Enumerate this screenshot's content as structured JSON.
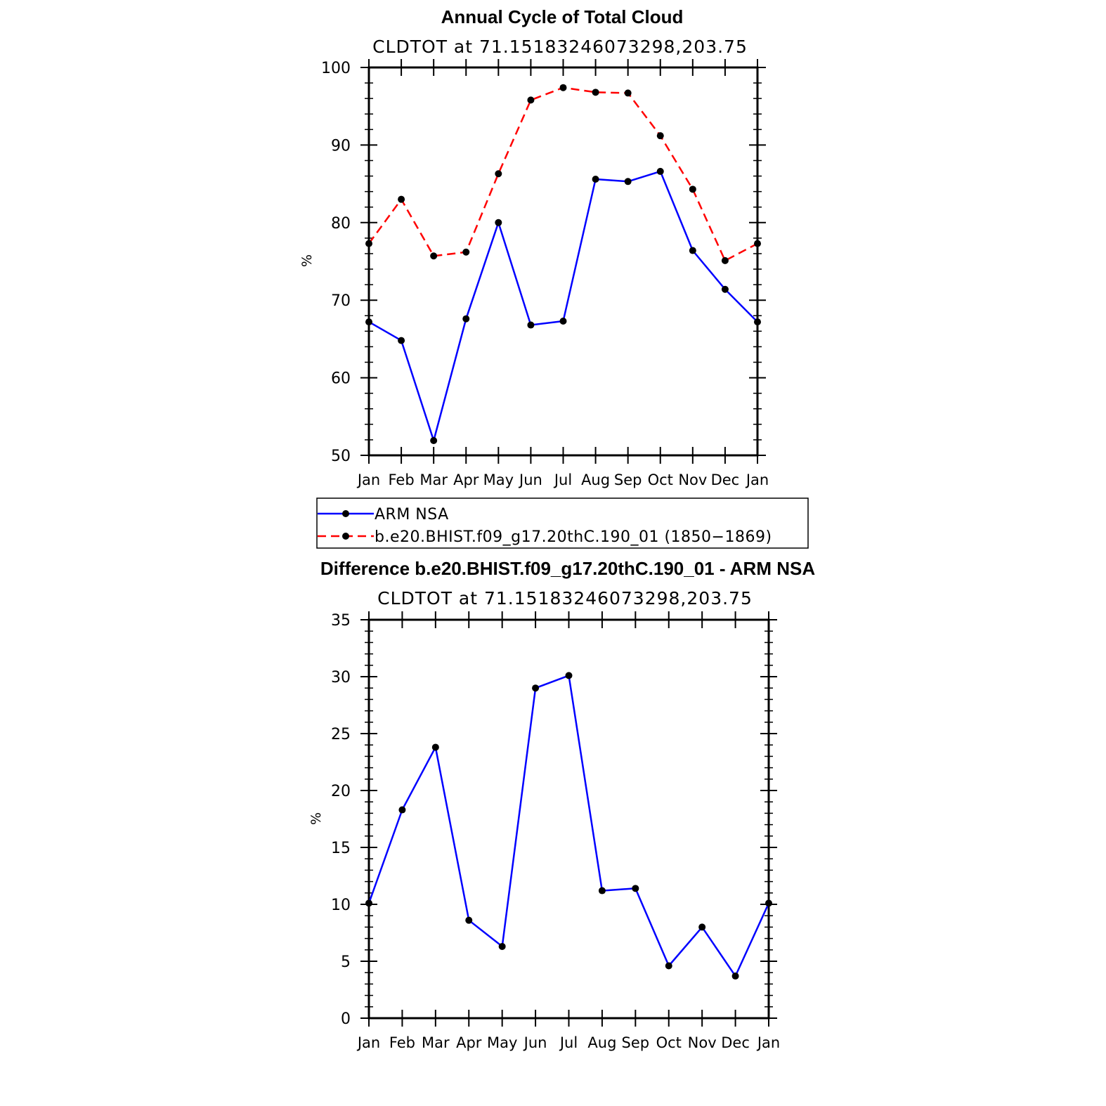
{
  "chart_data": [
    {
      "type": "line",
      "title": "Annual Cycle of Total Cloud",
      "subtitle": "CLDTOT at 71.15183246073298,203.75",
      "xlabel": "",
      "ylabel": "%",
      "ylim": [
        50,
        100
      ],
      "yticks": [
        "50",
        "60",
        "70",
        "80",
        "90",
        "100"
      ],
      "categories": [
        "Jan",
        "Feb",
        "Mar",
        "Apr",
        "May",
        "Jun",
        "Jul",
        "Aug",
        "Sep",
        "Oct",
        "Nov",
        "Dec",
        "Jan"
      ],
      "series": [
        {
          "name": "ARM NSA",
          "color": "#0000ff",
          "dash": "solid",
          "values": [
            67.2,
            64.8,
            51.9,
            67.6,
            80.0,
            66.8,
            67.3,
            85.6,
            85.3,
            86.6,
            76.4,
            71.4,
            67.2
          ]
        },
        {
          "name": "b.e20.BHIST.f09_g17.20thC.190_01 (1850-1869)",
          "color": "#ff0000",
          "dash": "dashed",
          "values": [
            77.3,
            83.0,
            75.7,
            76.2,
            86.3,
            95.8,
            97.4,
            96.8,
            96.7,
            91.2,
            84.3,
            75.1,
            77.3
          ]
        }
      ],
      "legend": {
        "position": "bottom",
        "entries": [
          "ARM NSA",
          "b.e20.BHIST.f09_g17.20thC.190_01 (1850−1869)"
        ]
      }
    },
    {
      "type": "line",
      "title": "Difference b.e20.BHIST.f09_g17.20thC.190_01 - ARM NSA",
      "subtitle": "CLDTOT at 71.15183246073298,203.75",
      "xlabel": "",
      "ylabel": "%",
      "ylim": [
        0,
        35
      ],
      "yticks": [
        "0",
        "5",
        "10",
        "15",
        "20",
        "25",
        "30",
        "35"
      ],
      "categories": [
        "Jan",
        "Feb",
        "Mar",
        "Apr",
        "May",
        "Jun",
        "Jul",
        "Aug",
        "Sep",
        "Oct",
        "Nov",
        "Dec",
        "Jan"
      ],
      "series": [
        {
          "name": "Difference",
          "color": "#0000ff",
          "dash": "solid",
          "values": [
            10.1,
            18.3,
            23.8,
            8.6,
            6.3,
            29.0,
            30.1,
            11.2,
            11.4,
            4.6,
            8.0,
            3.7,
            10.1
          ]
        }
      ]
    }
  ]
}
